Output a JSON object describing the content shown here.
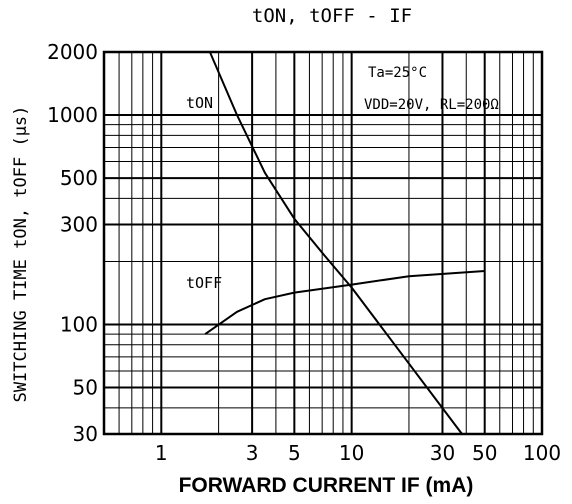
{
  "chart_data": {
    "type": "line",
    "title": "tON, tOFF  -  IF",
    "xlabel": "FORWARD CURRENT IF (mA)",
    "ylabel": "SWITCHING TIME  tON, tOFF (μs)",
    "x_scale": "log",
    "y_scale": "log",
    "xlim": [
      0.5,
      100
    ],
    "ylim": [
      30,
      2000
    ],
    "x_tick_labels": [
      "1",
      "3",
      "5",
      "10",
      "30",
      "50",
      "100"
    ],
    "y_tick_labels": [
      "2000",
      "1000",
      "500",
      "300",
      "100",
      "50",
      "30"
    ],
    "grid": true,
    "annotations": [
      "Ta=25°C",
      "VDD=20V, RL=200Ω"
    ],
    "series": [
      {
        "name": "tON",
        "points": [
          [
            1.8,
            2000
          ],
          [
            2.5,
            1000
          ],
          [
            3.5,
            530
          ],
          [
            5,
            320
          ],
          [
            7,
            220
          ],
          [
            10,
            150
          ],
          [
            20,
            65
          ],
          [
            38,
            30
          ]
        ]
      },
      {
        "name": "tOFF",
        "points": [
          [
            1.7,
            90
          ],
          [
            2.5,
            115
          ],
          [
            3.5,
            132
          ],
          [
            5,
            142
          ],
          [
            10,
            155
          ],
          [
            20,
            170
          ],
          [
            50,
            180
          ]
        ]
      }
    ]
  }
}
